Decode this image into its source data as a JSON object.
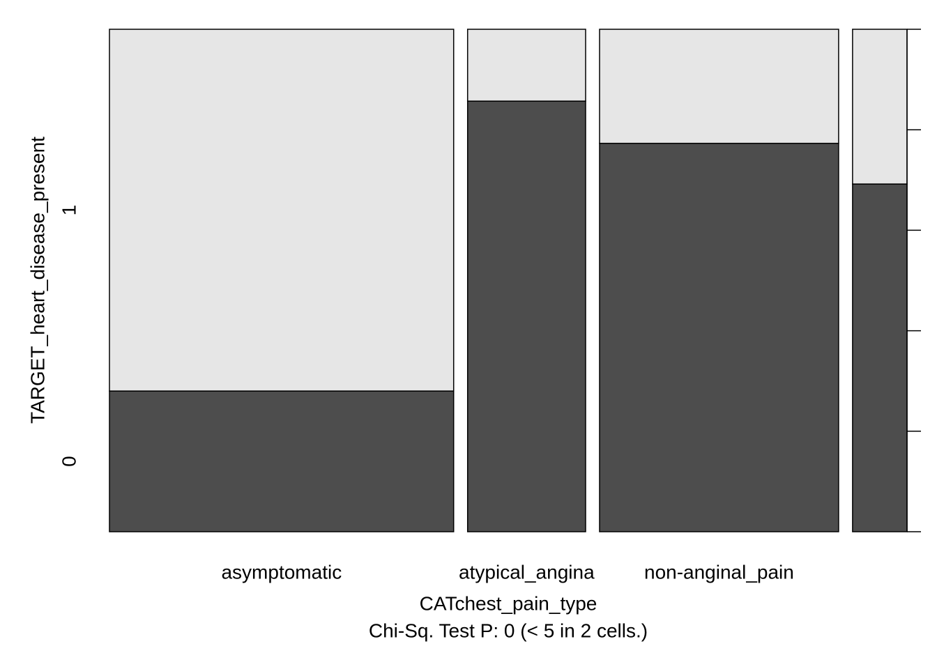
{
  "chart_data": {
    "type": "spineplot",
    "x_label": "CATchest_pain_type",
    "subtitle": "Chi-Sq. Test P: 0  (< 5 in  2  cells.)",
    "y_label": "TARGET_heart_disease_present",
    "categories": [
      "asymptomatic",
      "atypical_angina",
      "non-anginal_pain",
      null
    ],
    "widths": [
      0.455,
      0.156,
      0.316,
      0.072
    ],
    "series": [
      {
        "name": "0",
        "color": "#4d4d4d",
        "values": [
          0.28,
          0.857,
          0.773,
          0.692
        ]
      },
      {
        "name": "1",
        "color": "#e6e6e6",
        "values": [
          0.72,
          0.143,
          0.227,
          0.308
        ]
      }
    ],
    "ylim": [
      0,
      1
    ],
    "yticks": [
      0,
      0.2,
      0.4,
      0.6,
      0.8,
      1
    ]
  }
}
